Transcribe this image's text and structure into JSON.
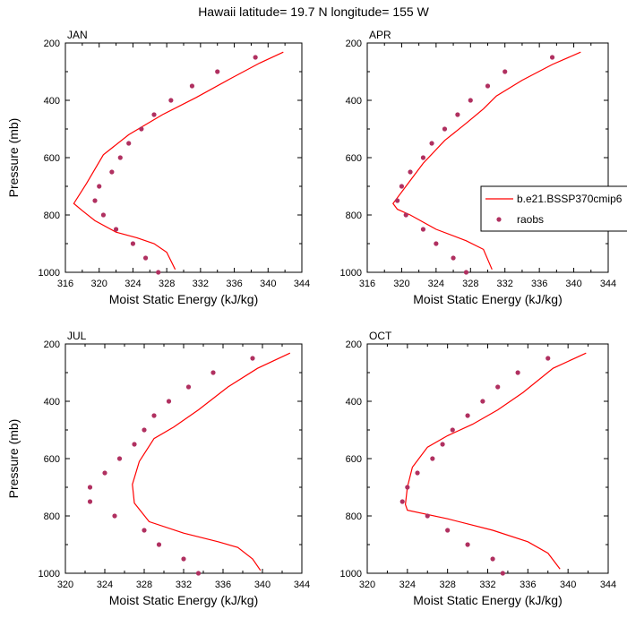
{
  "figure": {
    "title": "Hawaii  latitude= 19.7 N longitude= 155 W"
  },
  "legend": {
    "model_label": "b.e21.BSSP370cmip6",
    "obs_label": "raobs",
    "panel": 1
  },
  "colors": {
    "model_line": "#ff0000",
    "obs_marker": "#b03060",
    "axis": "#000000"
  },
  "chart_data": [
    {
      "type": "line",
      "title": "JAN",
      "xlabel": "Moist Static Energy (kJ/kg)",
      "ylabel": "Pressure (mb)",
      "xlim": [
        316,
        344
      ],
      "xticks": [
        316,
        320,
        324,
        328,
        332,
        336,
        340,
        344
      ],
      "ylim": [
        1000,
        200
      ],
      "yticks": [
        200,
        400,
        600,
        800,
        1000
      ],
      "y_inverted": true,
      "series": [
        {
          "name": "b.e21.BSSP370cmip6",
          "kind": "line",
          "x": [
            341.8,
            339,
            335.5,
            331.5,
            327.5,
            323.5,
            320.5,
            318.5,
            317,
            318,
            319.5,
            322,
            324.5,
            326.5,
            328,
            329
          ],
          "y": [
            232,
            270,
            325,
            390,
            450,
            520,
            590,
            690,
            760,
            785,
            820,
            860,
            880,
            900,
            930,
            990
          ]
        },
        {
          "name": "raobs",
          "kind": "scatter",
          "x": [
            338.5,
            334,
            331,
            328.5,
            326.5,
            325,
            323.5,
            322.5,
            321.5,
            320,
            319.5,
            320.5,
            322,
            324,
            325.5,
            327
          ],
          "y": [
            250,
            300,
            350,
            400,
            450,
            500,
            550,
            600,
            650,
            700,
            750,
            800,
            850,
            900,
            950,
            1000
          ]
        }
      ]
    },
    {
      "type": "line",
      "title": "APR",
      "xlabel": "Moist Static Energy (kJ/kg)",
      "ylabel": "",
      "xlim": [
        316,
        344
      ],
      "xticks": [
        316,
        320,
        324,
        328,
        332,
        336,
        340,
        344
      ],
      "ylim": [
        1000,
        200
      ],
      "yticks": [
        200,
        400,
        600,
        800,
        1000
      ],
      "y_inverted": true,
      "series": [
        {
          "name": "b.e21.BSSP370cmip6",
          "kind": "line",
          "x": [
            340.8,
            337.5,
            334,
            331,
            329.5,
            327.5,
            325,
            322.5,
            320.5,
            319,
            319.5,
            321,
            324,
            327.5,
            329.5,
            330.5
          ],
          "y": [
            232,
            275,
            330,
            385,
            430,
            480,
            540,
            620,
            700,
            760,
            780,
            800,
            850,
            890,
            920,
            990
          ]
        },
        {
          "name": "raobs",
          "kind": "scatter",
          "x": [
            337.5,
            332,
            330,
            328,
            326.5,
            325,
            323.5,
            322.5,
            321,
            320,
            319.5,
            320.5,
            322.5,
            324,
            326,
            327.5
          ],
          "y": [
            250,
            300,
            350,
            400,
            450,
            500,
            550,
            600,
            650,
            700,
            750,
            800,
            850,
            900,
            950,
            1000
          ]
        }
      ]
    },
    {
      "type": "line",
      "title": "JUL",
      "xlabel": "Moist Static Energy (kJ/kg)",
      "ylabel": "Pressure (mb)",
      "xlim": [
        320,
        344
      ],
      "xticks": [
        320,
        324,
        328,
        332,
        336,
        340,
        344
      ],
      "ylim": [
        1000,
        200
      ],
      "yticks": [
        200,
        400,
        600,
        800,
        1000
      ],
      "y_inverted": true,
      "series": [
        {
          "name": "b.e21.BSSP370cmip6",
          "kind": "line",
          "x": [
            342.8,
            339.5,
            336.5,
            333.5,
            331,
            329,
            327.5,
            326.8,
            327,
            328.5,
            332,
            335.5,
            337.5,
            339,
            339.8
          ],
          "y": [
            232,
            285,
            350,
            430,
            490,
            530,
            610,
            690,
            755,
            820,
            860,
            890,
            910,
            950,
            990
          ]
        },
        {
          "name": "raobs",
          "kind": "scatter",
          "x": [
            339,
            335,
            332.5,
            330.5,
            329,
            328,
            327,
            325.5,
            324,
            322.5,
            322.5,
            325,
            328,
            329.5,
            332,
            333.5
          ],
          "y": [
            250,
            300,
            350,
            400,
            450,
            500,
            550,
            600,
            650,
            700,
            750,
            800,
            850,
            900,
            950,
            1000
          ]
        }
      ]
    },
    {
      "type": "line",
      "title": "OCT",
      "xlabel": "Moist Static Energy (kJ/kg)",
      "ylabel": "",
      "xlim": [
        320,
        344
      ],
      "xticks": [
        320,
        324,
        328,
        332,
        336,
        340,
        344
      ],
      "ylim": [
        1000,
        200
      ],
      "yticks": [
        200,
        400,
        600,
        800,
        1000
      ],
      "y_inverted": true,
      "series": [
        {
          "name": "b.e21.BSSP370cmip6",
          "kind": "line",
          "x": [
            341.8,
            338.5,
            335.5,
            333,
            330.5,
            328,
            326,
            324.5,
            324,
            323.8,
            324,
            328,
            332.5,
            336,
            338,
            339.2
          ],
          "y": [
            232,
            285,
            370,
            430,
            480,
            520,
            560,
            630,
            700,
            760,
            780,
            810,
            850,
            890,
            930,
            985
          ]
        },
        {
          "name": "raobs",
          "kind": "scatter",
          "x": [
            338,
            335,
            333,
            331.5,
            330,
            328.5,
            327.5,
            326.5,
            325,
            324,
            323.5,
            326,
            328,
            330,
            332.5,
            333.5
          ],
          "y": [
            250,
            300,
            350,
            400,
            450,
            500,
            550,
            600,
            650,
            700,
            750,
            800,
            850,
            900,
            950,
            1000
          ]
        }
      ]
    }
  ]
}
